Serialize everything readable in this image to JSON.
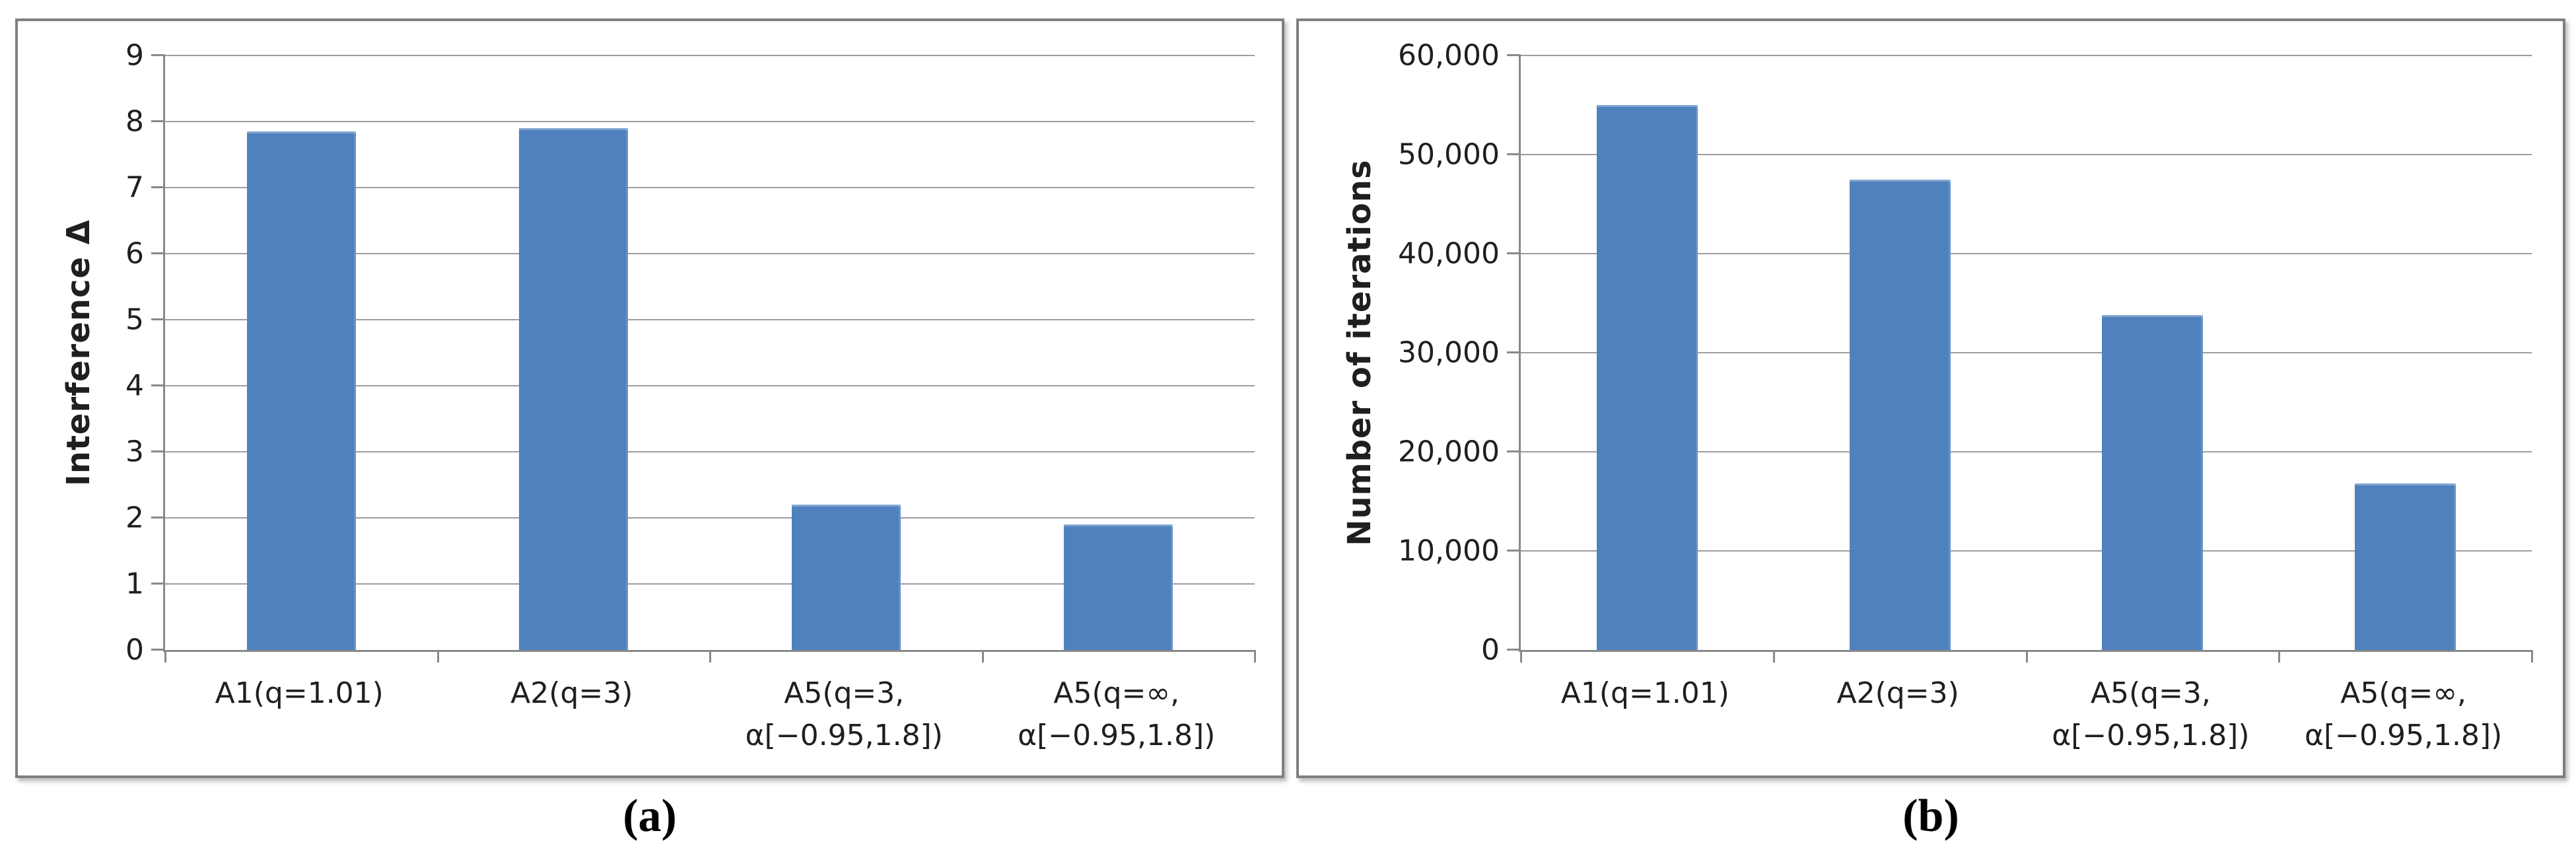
{
  "figure": {
    "captions": [
      "(a)",
      "(b)"
    ]
  },
  "colors": {
    "bar": "#4F81BD",
    "gridline": "#9D9D9D",
    "axis": "#898989",
    "panel_border": "#7F7F7F",
    "text": "#1F1F1F"
  },
  "chart_data": [
    {
      "type": "bar",
      "title": "",
      "xlabel": "",
      "ylabel": "Interference Δ",
      "categories": [
        "A1(q=1.01)",
        "A2(q=3)",
        "A5(q=3,\nα[−0.95,1.8])",
        "A5(q=∞,\nα[−0.95,1.8])"
      ],
      "values": [
        7.85,
        7.9,
        2.2,
        1.9
      ],
      "ylim": [
        0,
        9
      ],
      "yticks": [
        0,
        1,
        2,
        3,
        4,
        5,
        6,
        7,
        8,
        9
      ],
      "ytick_labels": [
        "0",
        "1",
        "2",
        "3",
        "4",
        "5",
        "6",
        "7",
        "8",
        "9"
      ],
      "grid": true,
      "legend_position": "none"
    },
    {
      "type": "bar",
      "title": "",
      "xlabel": "",
      "ylabel": "Number of iterations",
      "categories": [
        "A1(q=1.01)",
        "A2(q=3)",
        "A5(q=3,\nα[−0.95,1.8])",
        "A5(q=∞,\nα[−0.95,1.8])"
      ],
      "values": [
        55000,
        47500,
        33800,
        16800
      ],
      "ylim": [
        0,
        60000
      ],
      "yticks": [
        0,
        10000,
        20000,
        30000,
        40000,
        50000,
        60000
      ],
      "ytick_labels": [
        "0",
        "10,000",
        "20,000",
        "30,000",
        "40,000",
        "50,000",
        "60,000"
      ],
      "grid": true,
      "legend_position": "none"
    }
  ]
}
